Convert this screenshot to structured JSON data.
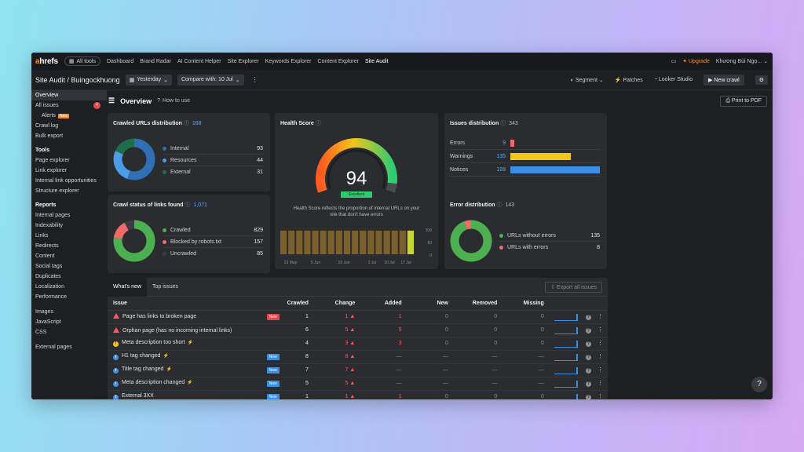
{
  "topbar": {
    "logo": "ahrefs",
    "all_tools": "All tools",
    "nav": [
      "Dashboard",
      "Brand Radar",
      "AI Content Helper",
      "Site Explorer",
      "Keywords Explorer",
      "Content Explorer",
      "Site Audit"
    ],
    "upgrade": "Upgrade",
    "user": "Khương Bùi Ngọ..."
  },
  "subbar": {
    "title": "Site Audit",
    "project": "Buingockhuong",
    "date": "Yesterday",
    "compare": "Compare with: 10 Jul",
    "segment": "Segment",
    "patches": "Patches",
    "looker": "Looker Studio",
    "new_crawl": "New crawl"
  },
  "sidebar": {
    "overview": "Overview",
    "all_issues": "All issues",
    "all_issues_count": "4",
    "alerts": "Alerts",
    "alerts_badge": "New",
    "crawl_log": "Crawl log",
    "bulk_export": "Bulk export",
    "tools_head": "Tools",
    "tools": [
      "Page explorer",
      "Link explorer",
      "Internal link opportunities",
      "Structure explorer"
    ],
    "reports_head": "Reports",
    "reports": [
      "Internal pages",
      "Indexability",
      "Links",
      "Redirects",
      "Content",
      "Social tags",
      "Duplicates",
      "Localization",
      "Performance"
    ],
    "resources": [
      "Images",
      "JavaScript",
      "CSS"
    ],
    "external": "External pages"
  },
  "main": {
    "title": "Overview",
    "how_to": "How to use",
    "print": "Print to PDF"
  },
  "crawled": {
    "title": "Crawled URLs distribution",
    "count": "168",
    "items": [
      {
        "label": "Internal",
        "value": 93,
        "color": "#2f6fb3"
      },
      {
        "label": "Resources",
        "value": 44,
        "color": "#4a9be8"
      },
      {
        "label": "External",
        "value": 31,
        "color": "#1f6e4a"
      }
    ]
  },
  "crawl_status": {
    "title": "Crawl status of links found",
    "count": "1,071",
    "items": [
      {
        "label": "Crawled",
        "value": 829,
        "color": "#4caf50"
      },
      {
        "label": "Blocked by robots.txt",
        "value": 157,
        "color": "#f06a6a"
      },
      {
        "label": "Uncrawled",
        "value": 85,
        "color": "#3b3c41"
      }
    ]
  },
  "health": {
    "title": "Health Score",
    "score": "94",
    "score_value": 94,
    "rating": "Excellent",
    "desc1": "Health Score reflects the proportion of internal URLs on your",
    "desc2": "site that don't have errors",
    "y_ticks": [
      "100",
      "50",
      "0"
    ],
    "x_ticks": [
      "22 May",
      "5 Jun",
      "19 Jun",
      "3 Jul",
      "10 Jul",
      "17 Jul"
    ],
    "history": [
      94,
      94,
      94,
      94,
      94,
      94,
      94,
      94,
      94,
      94,
      94,
      94,
      94,
      94,
      94,
      94,
      94
    ]
  },
  "issues_dist": {
    "title": "Issues distribution",
    "count": "343",
    "items": [
      {
        "label": "Errors",
        "value": 9,
        "color": "#f06a6a"
      },
      {
        "label": "Warnings",
        "value": 135,
        "color": "#f5c518"
      },
      {
        "label": "Notices",
        "value": 199,
        "color": "#3a8ee6"
      }
    ]
  },
  "error_dist": {
    "title": "Error distribution",
    "count": "143",
    "items": [
      {
        "label": "URLs without errors",
        "value": 135,
        "color": "#4caf50"
      },
      {
        "label": "URLs with errors",
        "value": 8,
        "color": "#f06a6a"
      }
    ]
  },
  "table": {
    "tabs": [
      "What's new",
      "Top issues"
    ],
    "export": "Export all issues",
    "headers": [
      "Issue",
      "Crawled",
      "Change",
      "Added",
      "New",
      "Removed",
      "Missing"
    ],
    "rows": [
      {
        "type": "err",
        "issue": "Page has links to broken page",
        "tag": "New",
        "tag_color": "red",
        "bolt": false,
        "crawled": "1",
        "change": "1",
        "added": "1",
        "new": "0",
        "removed": "0",
        "missing": "0"
      },
      {
        "type": "err",
        "issue": "Orphan page (has no incoming internal links)",
        "tag": "",
        "tag_color": "",
        "bolt": false,
        "crawled": "6",
        "change": "5",
        "added": "5",
        "new": "0",
        "removed": "0",
        "missing": "0"
      },
      {
        "type": "warn",
        "issue": "Meta description too short",
        "tag": "",
        "tag_color": "",
        "bolt": true,
        "crawled": "4",
        "change": "3",
        "added": "3",
        "new": "0",
        "removed": "0",
        "missing": "0"
      },
      {
        "type": "note",
        "issue": "H1 tag changed",
        "tag": "New",
        "tag_color": "blue",
        "bolt": true,
        "crawled": "8",
        "change": "8",
        "added": "—",
        "new": "—",
        "removed": "—",
        "missing": "—"
      },
      {
        "type": "note",
        "issue": "Title tag changed",
        "tag": "New",
        "tag_color": "blue",
        "bolt": true,
        "crawled": "7",
        "change": "7",
        "added": "—",
        "new": "—",
        "removed": "—",
        "missing": "—"
      },
      {
        "type": "note",
        "issue": "Meta description changed",
        "tag": "New",
        "tag_color": "blue",
        "bolt": true,
        "crawled": "5",
        "change": "5",
        "added": "—",
        "new": "—",
        "removed": "—",
        "missing": "—"
      },
      {
        "type": "note",
        "issue": "External 3XX",
        "tag": "New",
        "tag_color": "blue",
        "bolt": false,
        "crawled": "1",
        "change": "1",
        "added": "1",
        "new": "0",
        "removed": "0",
        "missing": "0"
      }
    ]
  },
  "help": "?"
}
